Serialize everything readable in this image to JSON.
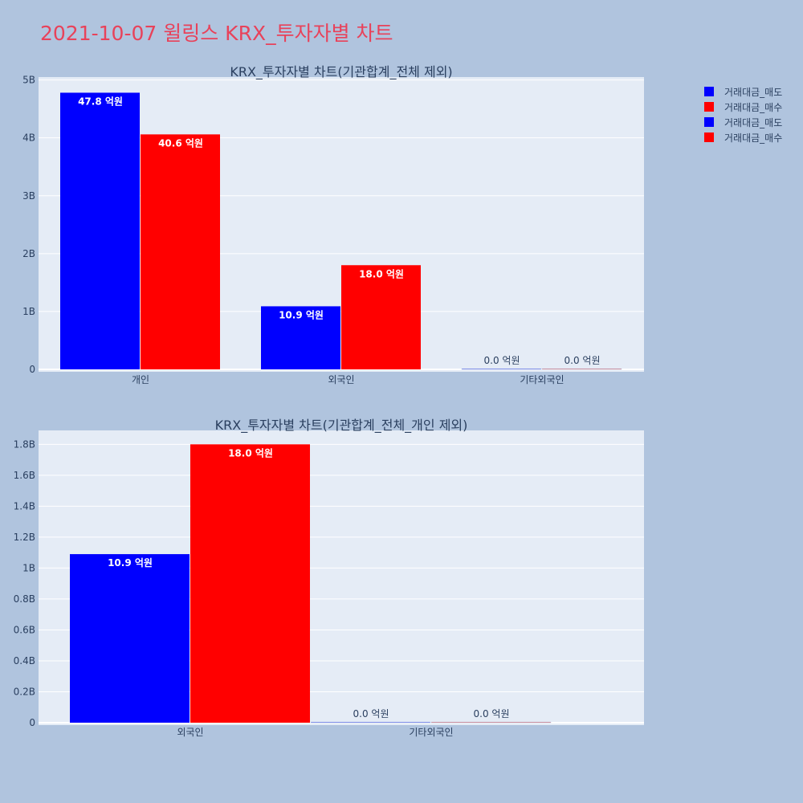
{
  "page": {
    "title": "2021-10-07 윌링스 KRX_투자자별 차트"
  },
  "legend": [
    {
      "label": "거래대금_매도",
      "color": "#0000ff"
    },
    {
      "label": "거래대금_매수",
      "color": "#ff0000"
    },
    {
      "label": "거래대금_매도",
      "color": "#0000ff"
    },
    {
      "label": "거래대금_매수",
      "color": "#ff0000"
    }
  ],
  "chart_data": [
    {
      "type": "bar",
      "title": "KRX_투자자별 차트(기관합계_전체 제외)",
      "categories": [
        "개인",
        "외국인",
        "기타외국인"
      ],
      "series": [
        {
          "name": "거래대금_매도",
          "color": "#0000ff",
          "values": [
            4780000000,
            1090000000,
            0
          ],
          "labels": [
            "47.8 억원",
            "10.9 억원",
            "0.0 억원"
          ]
        },
        {
          "name": "거래대금_매수",
          "color": "#ff0000",
          "values": [
            4060000000,
            1800000000,
            0
          ],
          "labels": [
            "40.6 억원",
            "18.0 억원",
            "0.0 억원"
          ]
        }
      ],
      "ylim": [
        0,
        5050000000
      ],
      "yticks": [
        0,
        1000000000,
        2000000000,
        3000000000,
        4000000000,
        5000000000
      ],
      "ytick_labels": [
        "0",
        "1B",
        "2B",
        "3B",
        "4B",
        "5B"
      ],
      "grid": true
    },
    {
      "type": "bar",
      "title": "KRX_투자자별 차트(기관합계_전체_개인 제외)",
      "categories": [
        "외국인",
        "기타외국인"
      ],
      "series": [
        {
          "name": "거래대금_매도",
          "color": "#0000ff",
          "values": [
            1090000000,
            0
          ],
          "labels": [
            "10.9 억원",
            "0.0 억원"
          ]
        },
        {
          "name": "거래대금_매수",
          "color": "#ff0000",
          "values": [
            1800000000,
            0
          ],
          "labels": [
            "18.0 억원",
            "0.0 억원"
          ]
        }
      ],
      "ylim": [
        0,
        1890000000
      ],
      "yticks": [
        0,
        200000000,
        400000000,
        600000000,
        800000000,
        1000000000,
        1200000000,
        1400000000,
        1600000000,
        1800000000
      ],
      "ytick_labels": [
        "0",
        "0.2B",
        "0.4B",
        "0.6B",
        "0.8B",
        "1B",
        "1.2B",
        "1.4B",
        "1.6B",
        "1.8B"
      ],
      "grid": true
    }
  ]
}
